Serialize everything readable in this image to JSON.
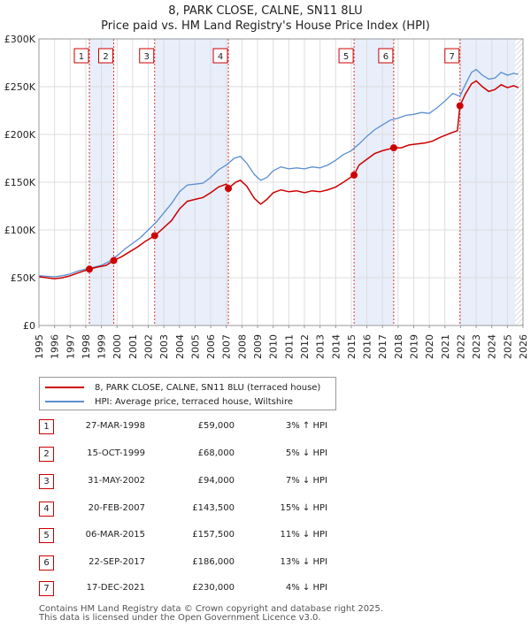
{
  "title": {
    "line1": "8, PARK CLOSE, CALNE, SN11 8LU",
    "line2": "Price paid vs. HM Land Registry's House Price Index (HPI)"
  },
  "chart_data": {
    "type": "line",
    "xlim": [
      1995,
      2026
    ],
    "ylim": [
      0,
      300000
    ],
    "y_ticks": [
      {
        "value": 0,
        "label": "£0"
      },
      {
        "value": 50000,
        "label": "£50K"
      },
      {
        "value": 100000,
        "label": "£100K"
      },
      {
        "value": 150000,
        "label": "£150K"
      },
      {
        "value": 200000,
        "label": "£200K"
      },
      {
        "value": 250000,
        "label": "£250K"
      },
      {
        "value": 300000,
        "label": "£300K"
      }
    ],
    "x_ticks": [
      "1995",
      "1996",
      "1997",
      "1998",
      "1999",
      "2000",
      "2001",
      "2002",
      "2003",
      "2004",
      "2005",
      "2006",
      "2007",
      "2008",
      "2009",
      "2010",
      "2011",
      "2012",
      "2013",
      "2014",
      "2015",
      "2016",
      "2017",
      "2018",
      "2019",
      "2020",
      "2021",
      "2022",
      "2023",
      "2024",
      "2025",
      "2026"
    ],
    "series": [
      {
        "name": "HPI: Average price, terraced house, Wiltshire",
        "color": "#5b8fd1",
        "points": [
          [
            1995.0,
            52000
          ],
          [
            1995.5,
            51500
          ],
          [
            1996.0,
            51000
          ],
          [
            1996.5,
            52000
          ],
          [
            1997.0,
            54000
          ],
          [
            1997.5,
            57000
          ],
          [
            1998.0,
            59000
          ],
          [
            1998.5,
            61000
          ],
          [
            1999.0,
            63000
          ],
          [
            1999.5,
            67000
          ],
          [
            2000.0,
            73000
          ],
          [
            2000.5,
            80000
          ],
          [
            2001.0,
            86000
          ],
          [
            2001.5,
            92000
          ],
          [
            2002.0,
            100000
          ],
          [
            2002.5,
            108000
          ],
          [
            2003.0,
            118000
          ],
          [
            2003.5,
            128000
          ],
          [
            2004.0,
            140000
          ],
          [
            2004.5,
            147000
          ],
          [
            2005.0,
            148000
          ],
          [
            2005.5,
            149000
          ],
          [
            2006.0,
            155000
          ],
          [
            2006.5,
            163000
          ],
          [
            2007.0,
            168000
          ],
          [
            2007.5,
            175000
          ],
          [
            2007.9,
            177000
          ],
          [
            2008.3,
            170000
          ],
          [
            2008.8,
            158000
          ],
          [
            2009.2,
            152000
          ],
          [
            2009.6,
            155000
          ],
          [
            2010.0,
            162000
          ],
          [
            2010.5,
            166000
          ],
          [
            2011.0,
            164000
          ],
          [
            2011.5,
            165000
          ],
          [
            2012.0,
            164000
          ],
          [
            2012.5,
            166000
          ],
          [
            2013.0,
            165000
          ],
          [
            2013.5,
            168000
          ],
          [
            2014.0,
            173000
          ],
          [
            2014.5,
            179000
          ],
          [
            2015.0,
            183000
          ],
          [
            2015.5,
            190000
          ],
          [
            2016.0,
            198000
          ],
          [
            2016.5,
            205000
          ],
          [
            2017.0,
            210000
          ],
          [
            2017.5,
            215000
          ],
          [
            2018.0,
            217000
          ],
          [
            2018.5,
            220000
          ],
          [
            2019.0,
            221000
          ],
          [
            2019.5,
            223000
          ],
          [
            2020.0,
            222000
          ],
          [
            2020.5,
            228000
          ],
          [
            2021.0,
            235000
          ],
          [
            2021.5,
            243000
          ],
          [
            2021.96,
            240000
          ],
          [
            2022.3,
            252000
          ],
          [
            2022.7,
            265000
          ],
          [
            2023.0,
            268000
          ],
          [
            2023.4,
            262000
          ],
          [
            2023.8,
            258000
          ],
          [
            2024.2,
            259000
          ],
          [
            2024.6,
            265000
          ],
          [
            2025.0,
            262000
          ],
          [
            2025.4,
            264000
          ],
          [
            2025.7,
            263000
          ]
        ]
      },
      {
        "name": "8, PARK CLOSE, CALNE, SN11 8LU (terraced house)",
        "color": "#cc0000",
        "points": [
          [
            1995.0,
            51000
          ],
          [
            1995.5,
            50000
          ],
          [
            1996.0,
            49000
          ],
          [
            1996.5,
            50000
          ],
          [
            1997.0,
            52000
          ],
          [
            1997.5,
            55000
          ],
          [
            1998.23,
            59000
          ],
          [
            1998.7,
            61000
          ],
          [
            1999.3,
            63000
          ],
          [
            1999.79,
            68000
          ],
          [
            2000.3,
            72000
          ],
          [
            2000.8,
            77000
          ],
          [
            2001.3,
            82000
          ],
          [
            2001.8,
            88000
          ],
          [
            2002.41,
            94000
          ],
          [
            2002.9,
            101000
          ],
          [
            2003.5,
            110000
          ],
          [
            2004.0,
            122000
          ],
          [
            2004.5,
            130000
          ],
          [
            2005.0,
            132000
          ],
          [
            2005.5,
            134000
          ],
          [
            2006.0,
            139000
          ],
          [
            2006.5,
            145000
          ],
          [
            2007.0,
            148000
          ],
          [
            2007.13,
            143500
          ],
          [
            2007.6,
            150000
          ],
          [
            2007.9,
            152000
          ],
          [
            2008.3,
            146000
          ],
          [
            2008.8,
            133000
          ],
          [
            2009.2,
            127000
          ],
          [
            2009.6,
            132000
          ],
          [
            2010.0,
            139000
          ],
          [
            2010.5,
            142000
          ],
          [
            2011.0,
            140000
          ],
          [
            2011.5,
            141000
          ],
          [
            2012.0,
            139000
          ],
          [
            2012.5,
            141000
          ],
          [
            2013.0,
            140000
          ],
          [
            2013.5,
            142000
          ],
          [
            2014.0,
            145000
          ],
          [
            2014.5,
            150000
          ],
          [
            2015.18,
            157500
          ],
          [
            2015.5,
            168000
          ],
          [
            2016.0,
            174000
          ],
          [
            2016.5,
            180000
          ],
          [
            2017.0,
            183000
          ],
          [
            2017.72,
            186000
          ],
          [
            2018.2,
            186000
          ],
          [
            2018.7,
            189000
          ],
          [
            2019.2,
            190000
          ],
          [
            2019.7,
            191000
          ],
          [
            2020.2,
            193000
          ],
          [
            2020.7,
            197000
          ],
          [
            2021.3,
            201000
          ],
          [
            2021.8,
            204000
          ],
          [
            2021.96,
            230000
          ],
          [
            2022.3,
            242000
          ],
          [
            2022.7,
            253000
          ],
          [
            2023.0,
            256000
          ],
          [
            2023.4,
            250000
          ],
          [
            2023.8,
            245000
          ],
          [
            2024.2,
            247000
          ],
          [
            2024.6,
            252000
          ],
          [
            2025.0,
            249000
          ],
          [
            2025.4,
            251000
          ],
          [
            2025.7,
            249000
          ]
        ]
      }
    ],
    "sales": [
      {
        "n": "1",
        "date": "27-MAR-1998",
        "x": 1998.23,
        "price": 59000,
        "price_label": "£59,000",
        "hpi": "3% ↑ HPI"
      },
      {
        "n": "2",
        "date": "15-OCT-1999",
        "x": 1999.79,
        "price": 68000,
        "price_label": "£68,000",
        "hpi": "5% ↓ HPI"
      },
      {
        "n": "3",
        "date": "31-MAY-2002",
        "x": 2002.41,
        "price": 94000,
        "price_label": "£94,000",
        "hpi": "7% ↓ HPI"
      },
      {
        "n": "4",
        "date": "20-FEB-2007",
        "x": 2007.13,
        "price": 143500,
        "price_label": "£143,500",
        "hpi": "15% ↓ HPI"
      },
      {
        "n": "5",
        "date": "06-MAR-2015",
        "x": 2015.18,
        "price": 157500,
        "price_label": "£157,500",
        "hpi": "11% ↓ HPI"
      },
      {
        "n": "6",
        "date": "22-SEP-2017",
        "x": 2017.72,
        "price": 186000,
        "price_label": "£186,000",
        "hpi": "13% ↓ HPI"
      },
      {
        "n": "7",
        "date": "17-DEC-2021",
        "x": 2021.96,
        "price": 230000,
        "price_label": "£230,000",
        "hpi": "4% ↓ HPI"
      }
    ],
    "shaded_periods": [
      [
        1998.23,
        1999.79
      ],
      [
        2002.41,
        2007.13
      ],
      [
        2015.18,
        2017.72
      ],
      [
        2021.96,
        2025.5
      ]
    ],
    "hatch_from": 2025.5,
    "shade_color": "#e8eefa",
    "grid_color": "#dddddd"
  },
  "legend": {
    "property_label": "8, PARK CLOSE, CALNE, SN11 8LU (terraced house)",
    "hpi_label": "HPI: Average price, terraced house, Wiltshire",
    "property_color": "#cc0000",
    "hpi_color": "#5b8fd1"
  },
  "footer": {
    "line1": "Contains HM Land Registry data © Crown copyright and database right 2025.",
    "line2": "This data is licensed under the Open Government Licence v3.0."
  }
}
